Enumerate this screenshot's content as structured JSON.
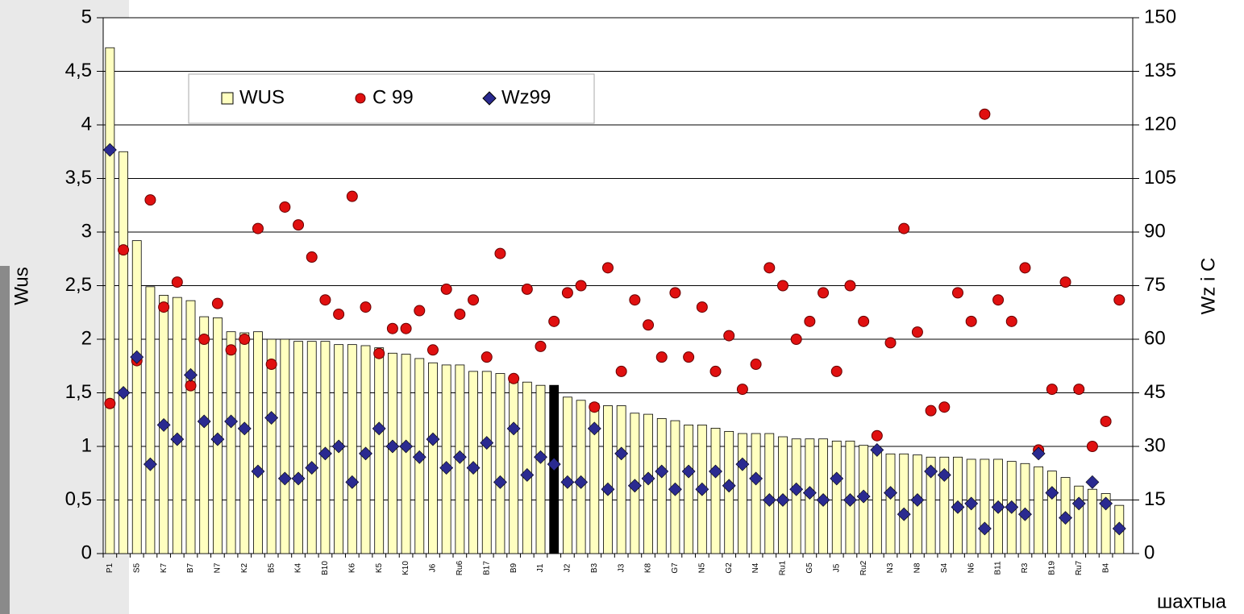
{
  "chart_data": {
    "type": "bar",
    "categories": [
      "P1",
      null,
      "S5",
      null,
      "K7",
      null,
      "B7",
      null,
      "N7",
      null,
      "K2",
      null,
      "B5",
      null,
      "K4",
      null,
      "B10",
      null,
      "K6",
      null,
      "K5",
      null,
      "K10",
      null,
      "J6",
      null,
      "Ru6",
      null,
      "B17",
      null,
      "B9",
      null,
      "J1",
      null,
      "J2",
      null,
      "B3",
      null,
      "J3",
      null,
      "K8",
      null,
      "G7",
      null,
      "N5",
      null,
      "G2",
      null,
      "N4",
      null,
      "Ru1",
      null,
      "G5",
      null,
      "J5",
      null,
      "Ru2",
      null,
      "N3",
      null,
      "N8",
      null,
      "S4",
      null,
      "N6",
      null,
      "B11",
      null,
      "R3",
      null,
      "B19",
      null,
      "Ru7",
      null,
      "B4",
      null
    ],
    "series": [
      {
        "name": "WUS",
        "kind": "bar",
        "color": "#ffffc0",
        "highlight": {
          "index": 33,
          "color": "#000000"
        },
        "values": [
          4.72,
          3.75,
          2.92,
          2.49,
          2.41,
          2.39,
          2.36,
          2.21,
          2.2,
          2.07,
          2.06,
          2.07,
          2.0,
          2.0,
          1.98,
          1.98,
          1.98,
          1.95,
          1.95,
          1.94,
          1.92,
          1.87,
          1.86,
          1.82,
          1.78,
          1.76,
          1.76,
          1.7,
          1.7,
          1.68,
          1.65,
          1.6,
          1.57,
          1.57,
          1.46,
          1.43,
          1.4,
          1.38,
          1.38,
          1.31,
          1.3,
          1.26,
          1.24,
          1.2,
          1.2,
          1.17,
          1.14,
          1.12,
          1.12,
          1.12,
          1.09,
          1.07,
          1.07,
          1.07,
          1.05,
          1.05,
          1.01,
          0.97,
          0.93,
          0.93,
          0.92,
          0.9,
          0.9,
          0.9,
          0.88,
          0.88,
          0.88,
          0.86,
          0.84,
          0.81,
          0.77,
          0.71,
          0.63,
          0.6,
          0.56,
          0.45
        ]
      },
      {
        "name": "C 99",
        "kind": "circle",
        "color": "#e01010",
        "axis": "y2",
        "values": [
          42,
          85,
          54,
          99,
          69,
          76,
          47,
          60,
          70,
          57,
          60,
          91,
          53,
          97,
          92,
          83,
          71,
          67,
          100,
          69,
          56,
          63,
          63,
          68,
          57,
          74,
          67,
          71,
          55,
          84,
          49,
          74,
          58,
          65,
          73,
          75,
          41,
          80,
          51,
          71,
          64,
          55,
          73,
          55,
          69,
          51,
          61,
          46,
          53,
          80,
          75,
          60,
          65,
          73,
          51,
          75,
          65,
          33,
          59,
          91,
          62,
          40,
          41,
          73,
          65,
          123,
          71,
          65,
          80,
          29,
          46,
          76,
          46,
          30,
          37,
          71
        ]
      },
      {
        "name": "Wz99",
        "kind": "diamond",
        "color": "#2a2a90",
        "axis": "y2",
        "values": [
          113,
          45,
          55,
          25,
          36,
          32,
          50,
          37,
          32,
          37,
          35,
          23,
          38,
          21,
          21,
          24,
          28,
          30,
          20,
          28,
          35,
          30,
          30,
          27,
          32,
          24,
          27,
          24,
          31,
          20,
          35,
          22,
          27,
          25,
          20,
          20,
          35,
          18,
          28,
          19,
          21,
          23,
          18,
          23,
          18,
          23,
          19,
          25,
          21,
          15,
          15,
          18,
          17,
          15,
          21,
          15,
          16,
          29,
          17,
          11,
          15,
          23,
          22,
          13,
          14,
          7,
          13,
          13,
          11,
          28,
          17,
          10,
          14,
          20,
          14,
          7
        ]
      }
    ],
    "ylim": [
      0,
      5
    ],
    "yticks": [
      0,
      {
        "value": 0.5,
        "label": "0,5"
      },
      1,
      {
        "value": 1.5,
        "label": "1,5"
      },
      2,
      {
        "value": 2.5,
        "label": "2,5"
      },
      3,
      {
        "value": 3.5,
        "label": "3,5"
      },
      4,
      {
        "value": 4.5,
        "label": "4,5"
      },
      5
    ],
    "y2lim": [
      0,
      150
    ],
    "y2ticks": [
      0,
      15,
      30,
      45,
      60,
      75,
      90,
      105,
      120,
      135,
      150
    ],
    "y_label": "Wus",
    "y2_label": "Wz i C",
    "x_label": "шахтыа",
    "grid": true
  }
}
